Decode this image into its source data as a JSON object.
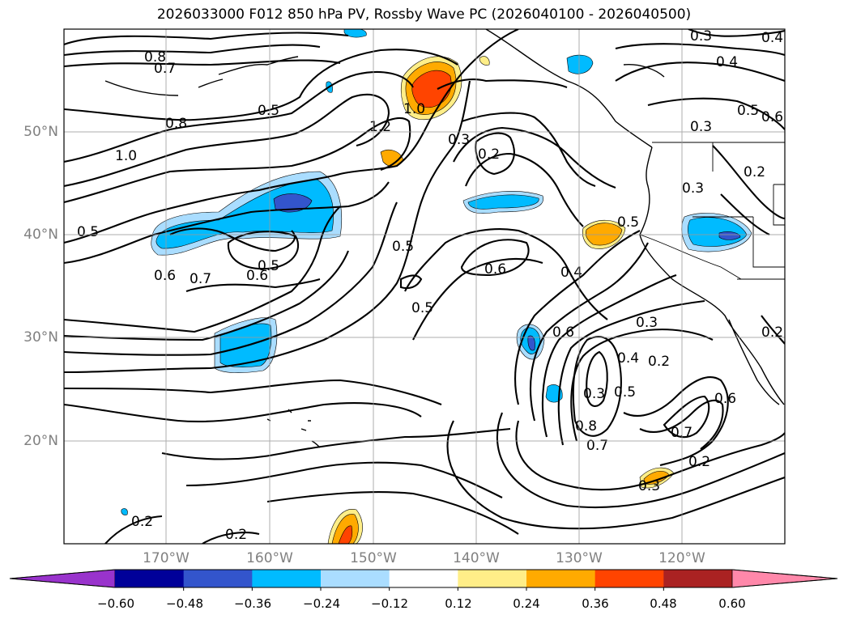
{
  "title": "2026033000 F012 850 hPa PV, Rossby Wave PC (2026040100 - 2026040500)",
  "lat_labels": [
    "50°N",
    "40°N",
    "30°N",
    "20°N"
  ],
  "lon_labels": [
    "170°W",
    "160°W",
    "150°W",
    "140°W",
    "130°W",
    "120°W"
  ],
  "colorbar": {
    "colors": [
      "#9933cc",
      "#000099",
      "#3355cc",
      "#00bbff",
      "#aaddff",
      "#ffffff",
      "#ffee88",
      "#ffaa00",
      "#ff4400",
      "#aa2222",
      "#ff88aa"
    ],
    "ticks": [
      "−0.60",
      "−0.48",
      "−0.36",
      "−0.24",
      "−0.12",
      "0.12",
      "0.24",
      "0.36",
      "0.48",
      "0.60"
    ]
  },
  "contour_labels": [
    "0.8",
    "0.7",
    "0.5",
    "0.8",
    "1.0",
    "0.5",
    "1.2",
    "1.0",
    "0.3",
    "0.2",
    "0.3",
    "0.4",
    "0.5",
    "0.6",
    "0.3",
    "0.2",
    "0.3",
    "0.5",
    "0.6",
    "0.7",
    "0.6",
    "0.5",
    "0.5",
    "0.5",
    "0.6",
    "0.4",
    "0.6",
    "0.3",
    "0.4",
    "0.2",
    "0.5",
    "0.6",
    "0.8",
    "0.7",
    "0.7",
    "0.2",
    "0.3",
    "0.2",
    "0.2",
    "0.2",
    "0.3",
    "0.4"
  ]
}
